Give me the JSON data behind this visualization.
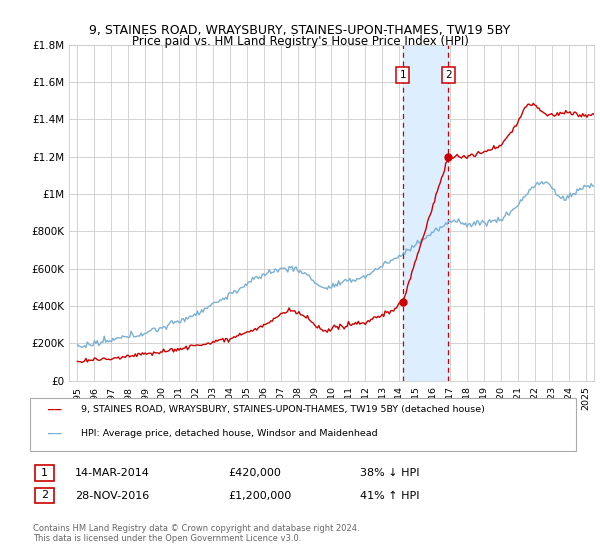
{
  "title": "9, STAINES ROAD, WRAYSBURY, STAINES-UPON-THAMES, TW19 5BY",
  "subtitle": "Price paid vs. HM Land Registry's House Price Index (HPI)",
  "ylim": [
    0,
    1800000
  ],
  "yticks": [
    0,
    200000,
    400000,
    600000,
    800000,
    1000000,
    1200000,
    1400000,
    1600000,
    1800000
  ],
  "ytick_labels": [
    "£0",
    "£200K",
    "£400K",
    "£600K",
    "£800K",
    "£1M",
    "£1.2M",
    "£1.4M",
    "£1.6M",
    "£1.8M"
  ],
  "xlim_start": 1994.5,
  "xlim_end": 2025.5,
  "sale1_date": 2014.2,
  "sale1_price": 420000,
  "sale1_label": "1",
  "sale1_text": "14-MAR-2014",
  "sale1_price_text": "£420,000",
  "sale1_hpi_text": "38% ↓ HPI",
  "sale2_date": 2016.9,
  "sale2_price": 1200000,
  "sale2_label": "2",
  "sale2_text": "28-NOV-2016",
  "sale2_price_text": "£1,200,000",
  "sale2_hpi_text": "41% ↑ HPI",
  "legend_line1": "9, STAINES ROAD, WRAYSBURY, STAINES-UPON-THAMES, TW19 5BY (detached house)",
  "legend_line2": "HPI: Average price, detached house, Windsor and Maidenhead",
  "footer": "Contains HM Land Registry data © Crown copyright and database right 2024.\nThis data is licensed under the Open Government Licence v3.0.",
  "red_color": "#cc0000",
  "blue_color": "#7ab0d4",
  "shade_color": "#ddeeff",
  "background_color": "#ffffff",
  "grid_color": "#cccccc"
}
